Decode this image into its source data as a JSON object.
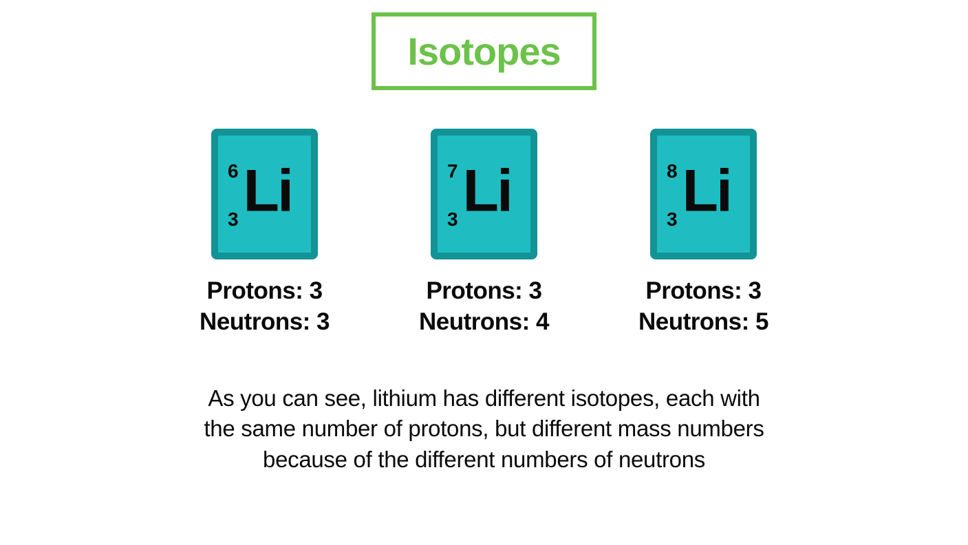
{
  "title": {
    "text": "Isotopes",
    "color": "#6cc24a",
    "border_color": "#6cc24a",
    "fontsize": 56
  },
  "element_card": {
    "background_color": "#1fbdc1",
    "border_color": "#129396",
    "text_color": "#0a0a0a"
  },
  "isotopes": [
    {
      "mass_number": "6",
      "atomic_number": "3",
      "symbol": "Li",
      "protons_label": "Protons: 3",
      "neutrons_label": "Neutrons: 3"
    },
    {
      "mass_number": "7",
      "atomic_number": "3",
      "symbol": "Li",
      "protons_label": "Protons: 3",
      "neutrons_label": "Neutrons: 4"
    },
    {
      "mass_number": "8",
      "atomic_number": "3",
      "symbol": "Li",
      "protons_label": "Protons: 3",
      "neutrons_label": "Neutrons: 5"
    }
  ],
  "description": "As you can see, lithium has different isotopes, each with the same number of protons, but different mass numbers because of the different numbers of neutrons",
  "colors": {
    "background": "#ffffff",
    "body_text": "#0a0a0a"
  }
}
